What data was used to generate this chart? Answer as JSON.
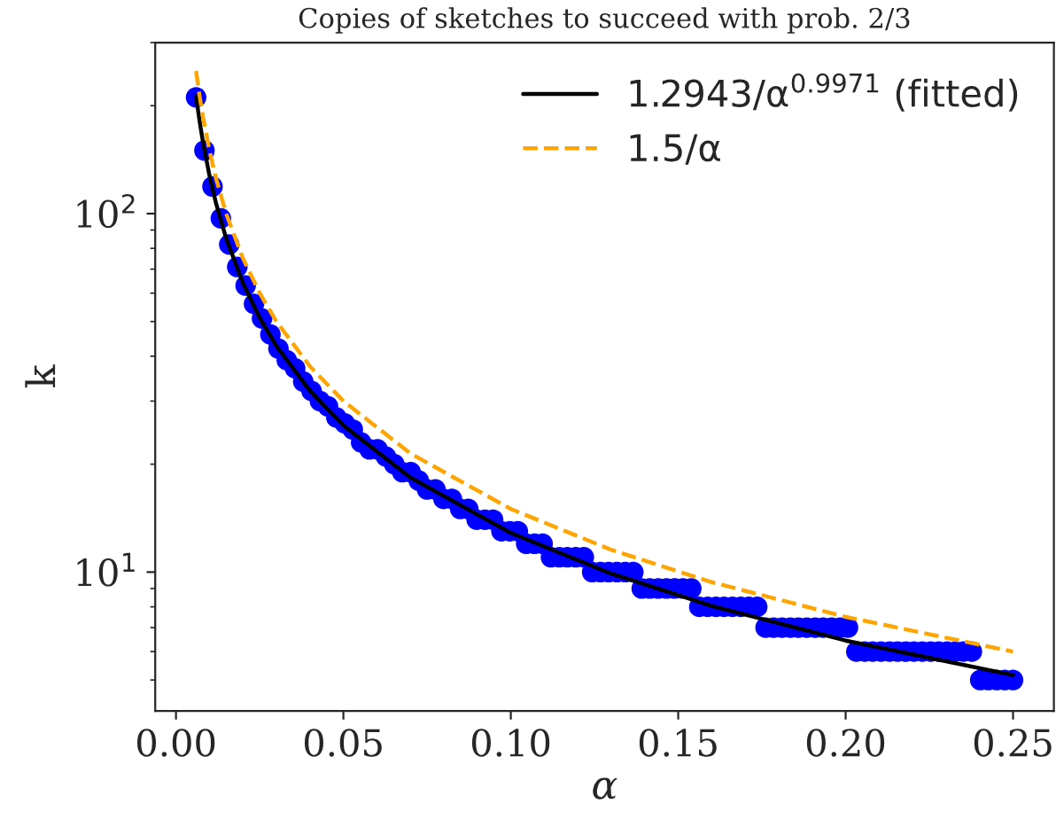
{
  "chart_data": {
    "type": "scatter",
    "title": "Copies of sketches to succeed with prob. 2/3",
    "xlabel": "α",
    "ylabel": "k",
    "log": "y",
    "xlim": [
      -0.0062,
      0.2622
    ],
    "ylim": [
      4.1,
      300
    ],
    "xticks": [
      {
        "value": 0,
        "label": "0.00"
      },
      {
        "value": 0.05,
        "label": "0.05"
      },
      {
        "value": 0.1,
        "label": "0.10"
      },
      {
        "value": 0.15,
        "label": "0.15"
      },
      {
        "value": 0.2,
        "label": "0.20"
      },
      {
        "value": 0.25,
        "label": "0.25"
      }
    ],
    "yticks": [
      {
        "value": 10,
        "label": "10$^{1}$"
      },
      {
        "value": 100,
        "label": "10$^{2}$"
      }
    ],
    "grid": false,
    "legend": "top right",
    "series": [
      {
        "color": "#0000ff",
        "marker": "circle",
        "x": [
          0.006,
          0.0085,
          0.0109,
          0.0134,
          0.0159,
          0.0183,
          0.0208,
          0.0233,
          0.0257,
          0.0282,
          0.0306,
          0.0331,
          0.0356,
          0.038,
          0.0405,
          0.043,
          0.0454,
          0.0479,
          0.0504,
          0.0528,
          0.0553,
          0.0578,
          0.0602,
          0.0627,
          0.0652,
          0.0676,
          0.0701,
          0.0725,
          0.075,
          0.0775,
          0.0799,
          0.0824,
          0.0849,
          0.0873,
          0.0898,
          0.0923,
          0.0947,
          0.0972,
          0.0997,
          0.1021,
          0.1046,
          0.1071,
          0.1095,
          0.112,
          0.1145,
          0.1169,
          0.1194,
          0.1218,
          0.1243,
          0.1268,
          0.1292,
          0.1317,
          0.1342,
          0.1366,
          0.1391,
          0.1415,
          0.144,
          0.1465,
          0.1489,
          0.1514,
          0.1539,
          0.1563,
          0.1588,
          0.1613,
          0.1637,
          0.1662,
          0.1687,
          0.1711,
          0.1736,
          0.1761,
          0.1785,
          0.181,
          0.1835,
          0.1859,
          0.1884,
          0.1909,
          0.1933,
          0.1958,
          0.1983,
          0.2007,
          0.2032,
          0.2057,
          0.2081,
          0.2106,
          0.2131,
          0.2155,
          0.218,
          0.2204,
          0.2229,
          0.2254,
          0.2278,
          0.2303,
          0.2328,
          0.2352,
          0.2377,
          0.2402,
          0.2426,
          0.2451,
          0.2475,
          0.25
        ],
        "values": [
          211,
          150,
          119,
          97,
          82,
          71,
          63,
          56,
          51,
          46,
          42,
          39,
          37,
          34,
          32,
          30,
          29,
          27,
          26,
          25,
          23,
          22,
          22,
          21,
          20,
          19,
          19,
          18,
          17,
          17,
          16,
          16,
          15,
          15,
          14,
          14,
          14,
          13,
          13,
          13,
          12,
          12,
          12,
          11,
          11,
          11,
          11,
          11,
          10,
          10,
          10,
          10,
          10,
          10,
          9,
          9,
          9,
          9,
          9,
          9,
          9,
          8,
          8,
          8,
          8,
          8,
          8,
          8,
          8,
          7,
          7,
          7,
          7,
          7,
          7,
          7,
          7,
          7,
          7,
          7,
          6,
          6,
          6,
          6,
          6,
          6,
          6,
          6,
          6,
          6,
          6,
          6,
          6,
          6,
          6,
          5,
          5,
          5,
          5,
          5
        ]
      },
      {
        "type": "line",
        "name": "1.2943/α$^{0.9971}$ (fitted)",
        "color": "#000000",
        "line_style": "solid",
        "marker": "none",
        "x": [
          0.006,
          0.007,
          0.008,
          0.01,
          0.012,
          0.015,
          0.02,
          0.025,
          0.03,
          0.04,
          0.05,
          0.07,
          0.1,
          0.13,
          0.16,
          0.2,
          0.25
        ],
        "values": [
          212.6,
          182.3,
          159.6,
          127.7,
          106.5,
          85.2,
          64.0,
          51.2,
          42.7,
          32.06,
          25.66,
          18.35,
          12.86,
          9.9,
          8.05,
          6.44,
          5.16
        ]
      },
      {
        "type": "line",
        "name": "1.5/α",
        "color": "#ffa500",
        "line_style": "dashed",
        "marker": "none",
        "x": [
          0.006,
          0.007,
          0.008,
          0.01,
          0.012,
          0.015,
          0.02,
          0.025,
          0.03,
          0.04,
          0.05,
          0.07,
          0.1,
          0.13,
          0.16,
          0.2,
          0.25
        ],
        "values": [
          250,
          214.3,
          187.5,
          150,
          125,
          100,
          75,
          60,
          50,
          37.5,
          30,
          21.43,
          15,
          11.54,
          9.375,
          7.5,
          6
        ]
      }
    ]
  }
}
